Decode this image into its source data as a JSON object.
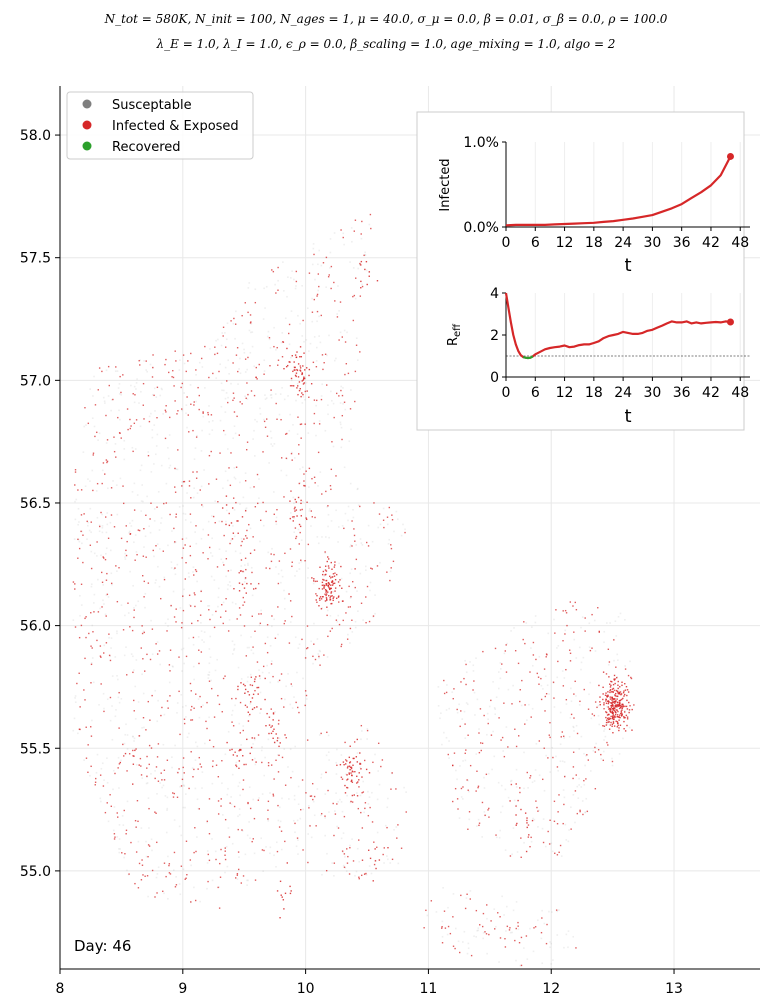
{
  "title": {
    "line1": "N_tot = 580K, N_init = 100, N_ages = 1, μ = 40.0, σ_μ = 0.0, β = 0.01, σ_β = 0.0, ρ = 100.0",
    "line2": "λ_E = 1.0, λ_I = 1.0, ϵ_ρ = 0.0, β_scaling = 1.0, age_mixing = 1.0, algo = 2"
  },
  "chart_data": [
    {
      "type": "scatter",
      "name": "map",
      "xlim": [
        8.0,
        13.7
      ],
      "ylim": [
        54.6,
        58.2
      ],
      "xticks": [
        8,
        9,
        10,
        11,
        12,
        13
      ],
      "yticks": [
        55.0,
        55.5,
        56.0,
        56.5,
        57.0,
        57.5,
        58.0
      ],
      "legend": {
        "placement": "top-left",
        "entries": [
          {
            "label": "Susceptable",
            "color": "#7f7f7f"
          },
          {
            "label": "Infected & Exposed",
            "color": "#d62728"
          },
          {
            "label": "Recovered",
            "color": "#2ca02c"
          }
        ]
      },
      "annotation": "Day: 46",
      "infection_clusters": [
        {
          "x": 9.93,
          "y": 57.04,
          "weight": 60
        },
        {
          "x": 10.18,
          "y": 56.16,
          "weight": 110
        },
        {
          "x": 12.52,
          "y": 55.68,
          "weight": 260
        },
        {
          "x": 10.38,
          "y": 55.4,
          "weight": 55
        },
        {
          "x": 9.55,
          "y": 55.71,
          "weight": 30
        },
        {
          "x": 9.47,
          "y": 55.49,
          "weight": 20
        },
        {
          "x": 9.73,
          "y": 55.57,
          "weight": 18
        },
        {
          "x": 9.92,
          "y": 56.47,
          "weight": 20
        },
        {
          "x": 9.4,
          "y": 56.45,
          "weight": 15
        },
        {
          "x": 11.75,
          "y": 55.22,
          "weight": 15
        },
        {
          "x": 10.58,
          "y": 55.06,
          "weight": 10
        },
        {
          "x": 9.8,
          "y": 54.92,
          "weight": 12
        },
        {
          "x": 10.5,
          "y": 57.45,
          "weight": 10
        },
        {
          "x": 9.5,
          "y": 56.18,
          "weight": 15
        },
        {
          "x": 8.6,
          "y": 55.48,
          "weight": 8
        }
      ]
    },
    {
      "type": "line",
      "name": "infected-inset",
      "xlabel": "t",
      "ylabel": "Infected",
      "xlim": [
        0,
        50
      ],
      "ylim": [
        0.0,
        1.0
      ],
      "xticks": [
        0,
        6,
        12,
        18,
        24,
        30,
        36,
        42,
        48
      ],
      "yticks": [
        {
          "value": 0.0,
          "label": "0.0%"
        },
        {
          "value": 1.0,
          "label": "1.0%"
        }
      ],
      "series": [
        {
          "color": "#d62728",
          "x": [
            0,
            2,
            4,
            6,
            8,
            10,
            12,
            14,
            16,
            18,
            20,
            22,
            24,
            26,
            28,
            30,
            32,
            34,
            36,
            38,
            40,
            42,
            44,
            46
          ],
          "y": [
            0.02,
            0.025,
            0.025,
            0.025,
            0.025,
            0.03,
            0.035,
            0.04,
            0.045,
            0.05,
            0.06,
            0.07,
            0.085,
            0.1,
            0.12,
            0.14,
            0.18,
            0.22,
            0.27,
            0.34,
            0.41,
            0.49,
            0.61,
            0.83
          ],
          "endpoint": {
            "x": 46,
            "y": 0.83
          }
        }
      ]
    },
    {
      "type": "line",
      "name": "reff-inset",
      "xlabel": "t",
      "ylabel": "R_eff",
      "xlim": [
        0,
        50
      ],
      "ylim": [
        0,
        4
      ],
      "xticks": [
        0,
        6,
        12,
        18,
        24,
        30,
        36,
        42,
        48
      ],
      "yticks": [
        0,
        2,
        4
      ],
      "reference_line": 1.0,
      "series": [
        {
          "color": "#d62728",
          "x": [
            0,
            0.5,
            1,
            1.5,
            2,
            2.5,
            3,
            3.5,
            4,
            4.5,
            5,
            5.5,
            6,
            7,
            8,
            9,
            10,
            11,
            12,
            13,
            14,
            15,
            16,
            17,
            18,
            19,
            20,
            21,
            22,
            23,
            24,
            25,
            26,
            27,
            28,
            29,
            30,
            31,
            32,
            33,
            34,
            35,
            36,
            37,
            38,
            39,
            40,
            41,
            42,
            43,
            44,
            45,
            46
          ],
          "y": [
            4.0,
            3.3,
            2.6,
            2.0,
            1.55,
            1.25,
            1.05,
            0.95,
            0.92,
            0.9,
            0.92,
            0.98,
            1.08,
            1.2,
            1.32,
            1.38,
            1.42,
            1.45,
            1.5,
            1.42,
            1.45,
            1.52,
            1.55,
            1.55,
            1.62,
            1.7,
            1.85,
            1.95,
            2.0,
            2.05,
            2.15,
            2.1,
            2.05,
            2.05,
            2.1,
            2.2,
            2.25,
            2.35,
            2.45,
            2.55,
            2.65,
            2.6,
            2.6,
            2.65,
            2.55,
            2.6,
            2.55,
            2.58,
            2.6,
            2.62,
            2.6,
            2.65,
            2.62
          ],
          "endpoint": {
            "x": 46,
            "y": 2.62
          }
        },
        {
          "color": "#2ca02c",
          "x": [
            3.5,
            4,
            4.5,
            5,
            5.5
          ],
          "y": [
            0.95,
            0.92,
            0.9,
            0.92,
            0.98
          ]
        }
      ]
    }
  ]
}
